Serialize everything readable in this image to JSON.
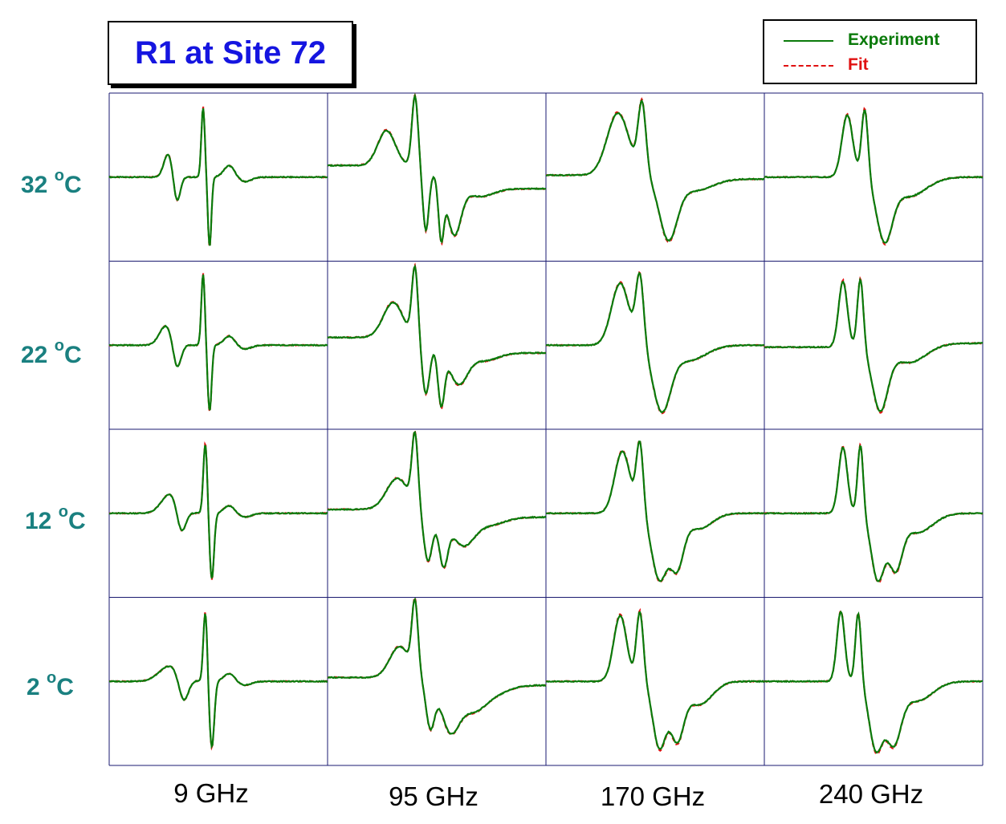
{
  "title": "R1 at Site 72",
  "colors": {
    "title": "#1515e0",
    "row_labels": "#1a8080",
    "experiment": "#0a7a0a",
    "fit": "#e01010",
    "grid": "#1a1a70"
  },
  "legend": [
    {
      "label": "Experiment",
      "style": "solid"
    },
    {
      "label": "Fit",
      "style": "dashed"
    }
  ],
  "row_labels": [
    {
      "value": "32",
      "unit": "C"
    },
    {
      "value": "22",
      "unit": "C"
    },
    {
      "value": "12",
      "unit": "C"
    },
    {
      "value": "2",
      "unit": "C"
    }
  ],
  "degree_symbol": "o",
  "column_labels": [
    "9 GHz",
    "95 GHz",
    "170 GHz",
    "240 GHz"
  ],
  "chart_data": {
    "type": "line",
    "description_units": "normalized field (x, 0–1 across panel) vs. normalized derivative amplitude (y, -1 to 1)",
    "rows": [
      "32 °C",
      "22 °C",
      "12 °C",
      "2 °C"
    ],
    "columns": [
      "9 GHz",
      "95 GHz",
      "170 GHz",
      "240 GHz"
    ],
    "series": [
      {
        "name": "Experiment",
        "style": "solid"
      },
      {
        "name": "Fit",
        "style": "dashed"
      }
    ],
    "panels": [
      [
        {
          "base": 0.0,
          "features": [
            [
              0.27,
              0.3,
              0.02
            ],
            [
              0.31,
              -0.33,
              0.015
            ],
            [
              0.43,
              0.9,
              0.008
            ],
            [
              0.46,
              -0.9,
              0.008
            ],
            [
              0.55,
              0.15,
              0.025
            ],
            [
              0.62,
              -0.06,
              0.03
            ]
          ]
        },
        {
          "base": 0.3,
          "features": [
            [
              0.27,
              0.45,
              0.04
            ],
            [
              0.4,
              0.9,
              0.014
            ],
            [
              0.45,
              -0.8,
              0.014
            ],
            [
              0.52,
              -0.7,
              0.012
            ],
            [
              0.58,
              -0.6,
              0.03
            ],
            [
              0.7,
              -0.1,
              0.06
            ]
          ]
        },
        {
          "base": 0.05,
          "features": [
            [
              0.33,
              0.8,
              0.05
            ],
            [
              0.44,
              0.9,
              0.018
            ],
            [
              0.56,
              -0.75,
              0.04
            ],
            [
              0.68,
              -0.15,
              0.08
            ]
          ]
        },
        {
          "base": 0.0,
          "features": [
            [
              0.38,
              0.8,
              0.025
            ],
            [
              0.46,
              0.9,
              0.015
            ],
            [
              0.55,
              -0.75,
              0.035
            ],
            [
              0.66,
              -0.25,
              0.08
            ]
          ]
        }
      ],
      [
        {
          "base": 0.0,
          "features": [
            [
              0.26,
              0.25,
              0.03
            ],
            [
              0.31,
              -0.33,
              0.018
            ],
            [
              0.43,
              0.92,
              0.008
            ],
            [
              0.46,
              -0.85,
              0.009
            ],
            [
              0.55,
              0.12,
              0.025
            ],
            [
              0.62,
              -0.05,
              0.03
            ]
          ]
        },
        {
          "base": 0.2,
          "features": [
            [
              0.3,
              0.45,
              0.045
            ],
            [
              0.4,
              0.9,
              0.014
            ],
            [
              0.45,
              -0.7,
              0.018
            ],
            [
              0.52,
              -0.7,
              0.015
            ],
            [
              0.6,
              -0.4,
              0.04
            ],
            [
              0.72,
              -0.1,
              0.06
            ]
          ]
        },
        {
          "base": 0.0,
          "features": [
            [
              0.34,
              0.8,
              0.04
            ],
            [
              0.43,
              0.9,
              0.018
            ],
            [
              0.53,
              -0.8,
              0.04
            ],
            [
              0.65,
              -0.2,
              0.08
            ]
          ]
        },
        {
          "base": -0.05,
          "features": [
            [
              0.36,
              0.85,
              0.02
            ],
            [
              0.44,
              0.9,
              0.014
            ],
            [
              0.53,
              -0.8,
              0.035
            ],
            [
              0.66,
              -0.25,
              0.08
            ]
          ]
        }
      ],
      [
        {
          "base": 0.0,
          "features": [
            [
              0.28,
              0.25,
              0.04
            ],
            [
              0.33,
              -0.33,
              0.02
            ],
            [
              0.44,
              0.9,
              0.009
            ],
            [
              0.47,
              -0.85,
              0.01
            ],
            [
              0.55,
              0.1,
              0.025
            ],
            [
              0.62,
              -0.05,
              0.03
            ]
          ]
        },
        {
          "base": 0.1,
          "features": [
            [
              0.32,
              0.4,
              0.05
            ],
            [
              0.4,
              0.9,
              0.014
            ],
            [
              0.46,
              -0.65,
              0.02
            ],
            [
              0.53,
              -0.6,
              0.02
            ],
            [
              0.62,
              -0.35,
              0.05
            ],
            [
              0.74,
              -0.1,
              0.07
            ]
          ]
        },
        {
          "base": 0.0,
          "features": [
            [
              0.35,
              0.8,
              0.035
            ],
            [
              0.43,
              0.9,
              0.016
            ],
            [
              0.52,
              -0.85,
              0.035
            ],
            [
              0.6,
              -0.65,
              0.03
            ],
            [
              0.7,
              -0.2,
              0.06
            ]
          ]
        },
        {
          "base": 0.0,
          "features": [
            [
              0.36,
              0.85,
              0.02
            ],
            [
              0.44,
              0.9,
              0.013
            ],
            [
              0.52,
              -0.85,
              0.03
            ],
            [
              0.6,
              -0.65,
              0.03
            ],
            [
              0.7,
              -0.25,
              0.07
            ]
          ]
        }
      ],
      [
        {
          "base": 0.0,
          "features": [
            [
              0.28,
              0.2,
              0.05
            ],
            [
              0.34,
              -0.33,
              0.022
            ],
            [
              0.44,
              0.9,
              0.009
            ],
            [
              0.47,
              -0.85,
              0.011
            ],
            [
              0.55,
              0.1,
              0.025
            ],
            [
              0.62,
              -0.05,
              0.03
            ]
          ]
        },
        {
          "base": 0.1,
          "features": [
            [
              0.33,
              0.4,
              0.045
            ],
            [
              0.4,
              0.9,
              0.014
            ],
            [
              0.47,
              -0.6,
              0.02
            ],
            [
              0.56,
              -0.55,
              0.04
            ],
            [
              0.66,
              -0.3,
              0.06
            ],
            [
              0.76,
              -0.1,
              0.07
            ]
          ]
        },
        {
          "base": 0.0,
          "features": [
            [
              0.34,
              0.85,
              0.03
            ],
            [
              0.43,
              0.9,
              0.016
            ],
            [
              0.52,
              -0.85,
              0.03
            ],
            [
              0.6,
              -0.7,
              0.03
            ],
            [
              0.7,
              -0.3,
              0.06
            ]
          ]
        },
        {
          "base": 0.0,
          "features": [
            [
              0.35,
              0.9,
              0.018
            ],
            [
              0.43,
              0.9,
              0.013
            ],
            [
              0.51,
              -0.85,
              0.03
            ],
            [
              0.59,
              -0.75,
              0.035
            ],
            [
              0.7,
              -0.25,
              0.07
            ]
          ]
        }
      ]
    ]
  }
}
